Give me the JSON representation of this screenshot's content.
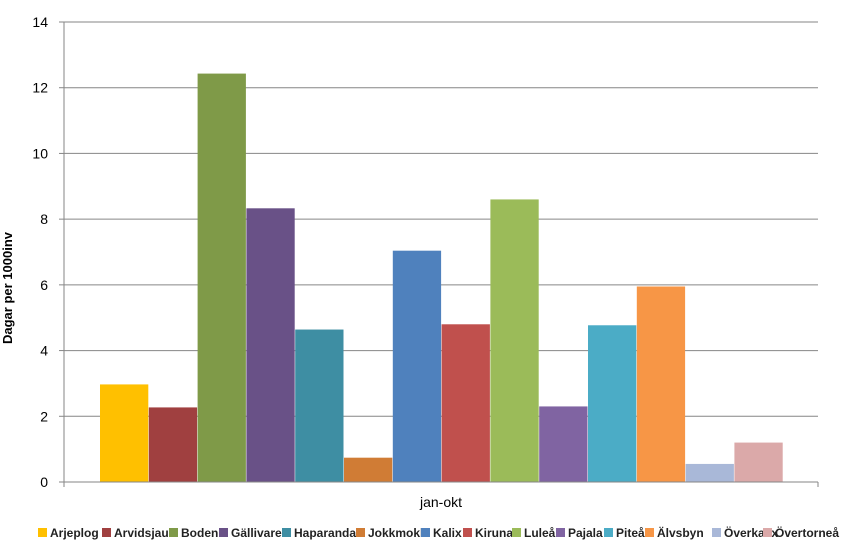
{
  "chart_data": {
    "type": "bar",
    "title": "",
    "xlabel": "",
    "ylabel": "Dagar per 1000inv",
    "ylim": [
      0,
      14
    ],
    "yticks": [
      0,
      2,
      4,
      6,
      8,
      10,
      12,
      14
    ],
    "categories": [
      "jan-okt"
    ],
    "grid": true,
    "legend_position": "bottom",
    "series": [
      {
        "name": "Arjeplog",
        "values": [
          2.97
        ],
        "color": "#FFC000"
      },
      {
        "name": "Arvidsjaur",
        "values": [
          2.27
        ],
        "color": "#A04040"
      },
      {
        "name": "Boden",
        "values": [
          12.43
        ],
        "color": "#7F9A48"
      },
      {
        "name": "Gällivare",
        "values": [
          8.33
        ],
        "color": "#695187"
      },
      {
        "name": "Haparanda",
        "values": [
          4.64
        ],
        "color": "#3E8EA3"
      },
      {
        "name": "Jokkmokk",
        "values": [
          0.74
        ],
        "color": "#D07C35"
      },
      {
        "name": "Kalix",
        "values": [
          7.04
        ],
        "color": "#4F81BD"
      },
      {
        "name": "Kiruna",
        "values": [
          4.8
        ],
        "color": "#C0504D"
      },
      {
        "name": "Luleå",
        "values": [
          8.6
        ],
        "color": "#9BBB59"
      },
      {
        "name": "Pajala",
        "values": [
          2.3
        ],
        "color": "#8064A2"
      },
      {
        "name": "Piteå",
        "values": [
          4.77
        ],
        "color": "#4BACC6"
      },
      {
        "name": "Älvsbyn",
        "values": [
          5.95
        ],
        "color": "#F79646"
      },
      {
        "name": "Överkalix",
        "values": [
          0.55
        ],
        "color": "#A9B8D8"
      },
      {
        "name": "Övertorneå",
        "values": [
          1.2
        ],
        "color": "#DBA9A9"
      }
    ]
  }
}
